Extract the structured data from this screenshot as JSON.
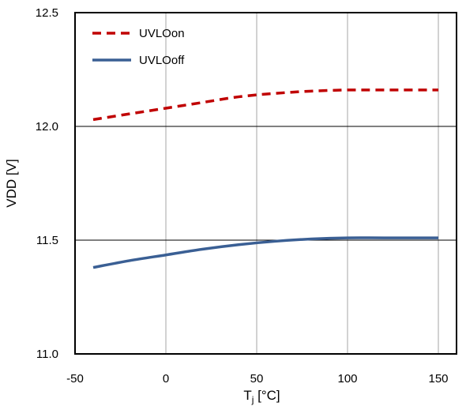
{
  "chart_data": {
    "type": "line",
    "xlabel_main": "T",
    "xlabel_sub": "j",
    "xlabel_rest": " [°C]",
    "ylabel": "VDD [V]",
    "xlim": [
      -50,
      160
    ],
    "ylim": [
      11.0,
      12.5
    ],
    "xticks": [
      -50,
      0,
      50,
      100,
      150
    ],
    "xtick_labels": [
      "-50",
      "0",
      "50",
      "100",
      "150"
    ],
    "yticks": [
      11.0,
      11.5,
      12.0,
      12.5
    ],
    "ytick_labels": [
      "11.0",
      "11.5",
      "12.0",
      "12.5"
    ],
    "grid": true,
    "legend_position": "top-left",
    "series": [
      {
        "name": "UVLOon",
        "color": "#c00000",
        "style": "dashed",
        "x": [
          -40,
          -20,
          0,
          20,
          40,
          60,
          80,
          100,
          120,
          150
        ],
        "y": [
          12.03,
          12.055,
          12.08,
          12.105,
          12.13,
          12.145,
          12.155,
          12.16,
          12.16,
          12.16
        ]
      },
      {
        "name": "UVLOoff",
        "color": "#3a5f94",
        "style": "solid",
        "x": [
          -40,
          -20,
          0,
          20,
          40,
          60,
          80,
          100,
          120,
          150
        ],
        "y": [
          11.38,
          11.41,
          11.435,
          11.46,
          11.48,
          11.495,
          11.505,
          11.51,
          11.51,
          11.51
        ]
      }
    ]
  }
}
